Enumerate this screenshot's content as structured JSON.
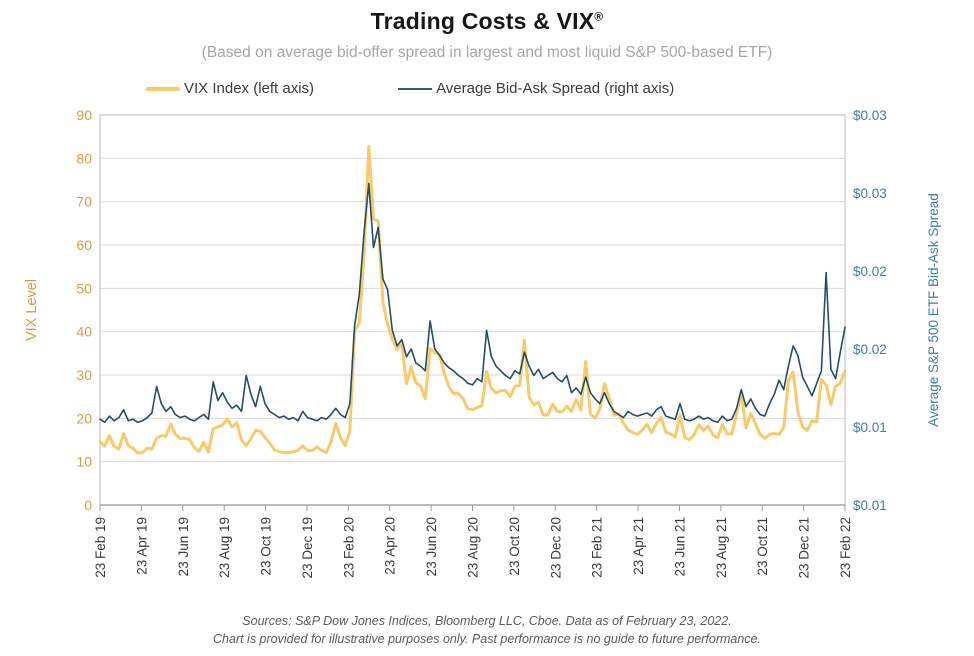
{
  "header": {
    "title": "Trading Costs & VIX",
    "registered_mark": "®",
    "subtitle": "(Based on average bid-offer spread in largest and most liquid S&P 500-based ETF)"
  },
  "legend": {
    "vix_label": "VIX Index (left axis)",
    "spread_label": "Average Bid-Ask Spread (right axis)"
  },
  "footer": {
    "line1": "Sources: S&P Dow Jones Indices, Bloomberg LLC, Cboe.  Data as of February 23, 2022.",
    "line2": "Chart is provided for illustrative purposes only.  Past performance is no guide to future performance."
  },
  "colors": {
    "vix_line": "#F9CA6B",
    "spread_line": "#244E66",
    "left_axis_text": "#DB9B3C",
    "right_axis_text": "#3E7CA8",
    "x_axis_text": "#3A3A3A",
    "subtitle_text": "#A6A6A6",
    "gridline": "#D9D9D9",
    "plot_border": "#C6C6C6",
    "axis_line": "#9B9B9B"
  },
  "chart_data": {
    "type": "line",
    "title": "Trading Costs & VIX®",
    "subtitle": "(Based on average bid-offer spread in largest and most liquid S&P 500-based ETF)",
    "frequency": "weekly",
    "x_range": [
      "23 Feb 19",
      "23 Feb 22"
    ],
    "grid": "horizontal",
    "legend_position": "top",
    "left_axis": {
      "label": "VIX Level",
      "min": 0,
      "max": 90,
      "ticks": [
        0,
        10,
        20,
        30,
        40,
        50,
        60,
        70,
        80,
        90
      ],
      "color": "#DB9B3C"
    },
    "right_axis": {
      "label": "Average S&P 500 ETF Bid-Ask Spread",
      "min": 0.005,
      "max": 0.03,
      "ticks": [
        {
          "value": 0.005,
          "label": "$0.01"
        },
        {
          "value": 0.01,
          "label": "$0.01"
        },
        {
          "value": 0.015,
          "label": "$0.02"
        },
        {
          "value": 0.02,
          "label": "$0.02"
        },
        {
          "value": 0.025,
          "label": "$0.03"
        },
        {
          "value": 0.03,
          "label": "$0.03"
        }
      ],
      "color": "#3E7CA8"
    },
    "x_axis": {
      "tick_labels": [
        "23 Feb 19",
        "23 Apr 19",
        "23 Jun 19",
        "23 Aug 19",
        "23 Oct 19",
        "23 Dec 19",
        "23 Feb 20",
        "23 Apr 20",
        "23 Jun 20",
        "23 Aug 20",
        "23 Oct 20",
        "23 Dec 20",
        "23 Feb 21",
        "23 Apr 21",
        "23 Jun 21",
        "23 Aug 21",
        "23 Oct 21",
        "23 Dec 21",
        "23 Feb 22"
      ],
      "color": "#3A3A3A"
    },
    "series": [
      {
        "name": "VIX Index (left axis)",
        "axis": "left",
        "color": "#F9CA6B",
        "width": 3,
        "values": [
          14.6,
          13.6,
          16.0,
          13.6,
          12.9,
          16.5,
          13.7,
          13.1,
          12.0,
          12.1,
          13.1,
          12.9,
          15.4,
          16.0,
          15.9,
          18.7,
          16.3,
          15.3,
          15.4,
          15.1,
          13.3,
          12.4,
          14.5,
          12.2,
          17.6,
          18.0,
          18.5,
          19.9,
          18.0,
          19.0,
          15.0,
          13.7,
          15.3,
          17.2,
          17.0,
          15.6,
          14.3,
          12.7,
          12.3,
          12.1,
          12.1,
          12.3,
          12.6,
          13.6,
          12.6,
          12.5,
          13.4,
          12.6,
          12.1,
          14.6,
          18.8,
          15.5,
          13.7,
          17.1,
          40.1,
          41.9,
          57.8,
          82.7,
          66.0,
          65.5,
          46.8,
          41.7,
          38.2,
          35.9,
          37.2,
          28.0,
          31.9,
          28.2,
          27.5,
          24.5,
          36.1,
          35.1,
          34.7,
          30.4,
          27.3,
          25.7,
          25.8,
          24.5,
          22.2,
          22.0,
          22.5,
          22.9,
          30.8,
          26.9,
          25.8,
          26.4,
          26.4,
          25.0,
          27.4,
          27.6,
          38.0,
          24.9,
          23.1,
          23.7,
          20.8,
          20.8,
          23.3,
          21.6,
          21.5,
          22.8,
          21.6,
          24.3,
          21.9,
          33.1,
          21.0,
          20.0,
          22.1,
          28.0,
          24.7,
          20.7,
          21.0,
          18.9,
          17.3,
          16.7,
          16.3,
          17.3,
          18.6,
          16.7,
          18.8,
          20.2,
          16.8,
          16.4,
          15.7,
          20.7,
          15.6,
          15.1,
          16.2,
          18.5,
          17.2,
          18.2,
          16.2,
          15.5,
          18.6,
          16.4,
          16.4,
          21.0,
          25.7,
          17.8,
          21.1,
          18.8,
          16.3,
          15.4,
          16.3,
          16.5,
          16.3,
          17.9,
          28.6,
          30.7,
          21.6,
          18.0,
          17.2,
          19.4,
          19.2,
          28.9,
          27.7,
          23.2,
          27.4,
          28.1,
          31.0
        ]
      },
      {
        "name": "Average Bid-Ask Spread (right axis)",
        "axis": "right",
        "color": "#244E66",
        "width": 1.6,
        "values": [
          0.0105,
          0.0103,
          0.0107,
          0.0104,
          0.0106,
          0.0111,
          0.0104,
          0.0105,
          0.0103,
          0.0104,
          0.0106,
          0.0109,
          0.0126,
          0.0115,
          0.011,
          0.0113,
          0.0108,
          0.0106,
          0.0107,
          0.0105,
          0.0104,
          0.0106,
          0.0108,
          0.0105,
          0.0129,
          0.0117,
          0.0122,
          0.0116,
          0.0112,
          0.0114,
          0.011,
          0.0133,
          0.0121,
          0.0113,
          0.0126,
          0.0115,
          0.011,
          0.0108,
          0.0106,
          0.0107,
          0.0105,
          0.0106,
          0.0104,
          0.011,
          0.0106,
          0.0105,
          0.0104,
          0.0106,
          0.0105,
          0.0108,
          0.0112,
          0.0108,
          0.0106,
          0.0115,
          0.0165,
          0.0185,
          0.0225,
          0.0256,
          0.0215,
          0.0228,
          0.0195,
          0.0188,
          0.0162,
          0.0152,
          0.0156,
          0.0145,
          0.015,
          0.0141,
          0.0139,
          0.0136,
          0.0168,
          0.015,
          0.0146,
          0.0141,
          0.0138,
          0.0136,
          0.0133,
          0.0131,
          0.0128,
          0.0127,
          0.0131,
          0.0129,
          0.0162,
          0.0145,
          0.0139,
          0.0136,
          0.0133,
          0.0131,
          0.0136,
          0.0134,
          0.0148,
          0.0139,
          0.0133,
          0.0137,
          0.0131,
          0.0133,
          0.0135,
          0.0131,
          0.0129,
          0.0133,
          0.0122,
          0.0125,
          0.0121,
          0.0132,
          0.0122,
          0.0118,
          0.0115,
          0.0122,
          0.0115,
          0.011,
          0.0108,
          0.0106,
          0.011,
          0.0108,
          0.0107,
          0.0108,
          0.0109,
          0.0107,
          0.0111,
          0.0113,
          0.0107,
          0.0106,
          0.0105,
          0.0115,
          0.0105,
          0.0104,
          0.0105,
          0.0107,
          0.0105,
          0.0106,
          0.0104,
          0.0103,
          0.0107,
          0.0104,
          0.0105,
          0.0112,
          0.0124,
          0.0113,
          0.0118,
          0.0112,
          0.0108,
          0.0107,
          0.0115,
          0.0121,
          0.013,
          0.0124,
          0.0139,
          0.0152,
          0.0146,
          0.0132,
          0.0126,
          0.012,
          0.0128,
          0.0136,
          0.0199,
          0.0137,
          0.0131,
          0.0148,
          0.0164
        ]
      }
    ]
  }
}
